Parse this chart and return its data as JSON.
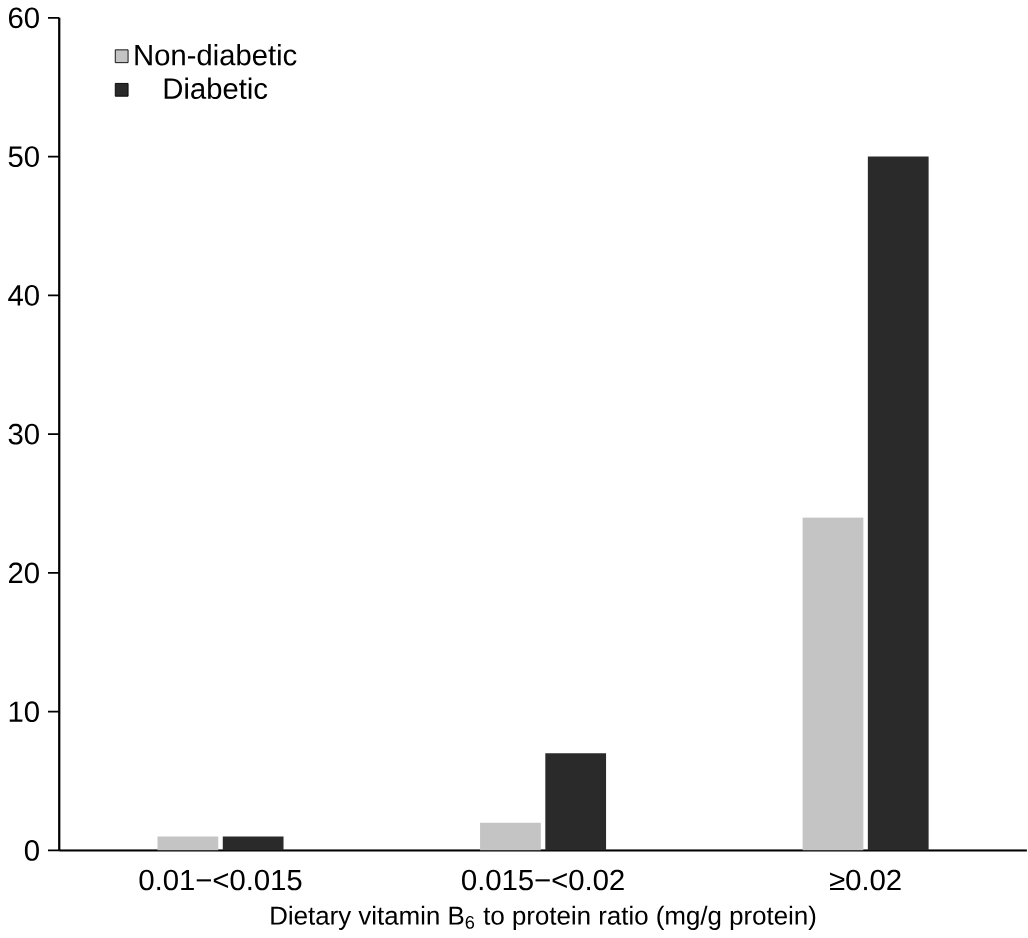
{
  "chart_data": {
    "type": "bar",
    "xlabel": "Dietary vitamin B$_{6}$ to protein ratio (mg/g protein)",
    "categories": [
      "0.01−<0.015",
      "0.015−<0.02",
      "≥0.02"
    ],
    "series": [
      {
        "name": "Non-diabetic",
        "color": "#c4c4c4",
        "values": [
          1,
          2,
          24
        ]
      },
      {
        "name": "Diabetic",
        "color": "#2a2a2a",
        "values": [
          1,
          7,
          50
        ]
      }
    ],
    "ylim": [
      0,
      60
    ],
    "yticks": [
      0,
      10,
      20,
      30,
      40,
      50,
      60
    ],
    "grid": false,
    "legend": "top left"
  }
}
